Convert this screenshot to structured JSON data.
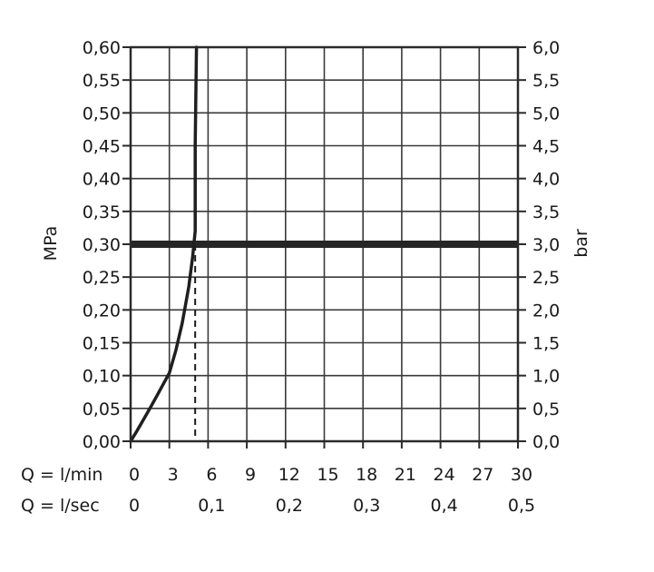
{
  "chart_data": {
    "type": "line",
    "title": "",
    "ylabel_left": "MPa",
    "ylabel_right": "bar",
    "x_primary": {
      "label": "Q = l/min",
      "ticks": [
        "0",
        "3",
        "6",
        "9",
        "12",
        "15",
        "18",
        "21",
        "24",
        "27",
        "30"
      ],
      "range": [
        0,
        30
      ]
    },
    "x_secondary": {
      "label": "Q = l/sec",
      "ticks": [
        "0",
        "0,1",
        "0,2",
        "0,3",
        "0,4",
        "0,5"
      ],
      "tick_values_lmin": [
        0,
        6,
        12,
        18,
        24,
        30
      ]
    },
    "y_left": {
      "ticks": [
        "0,00",
        "0,05",
        "0,10",
        "0,15",
        "0,20",
        "0,25",
        "0,30",
        "0,35",
        "0,40",
        "0,45",
        "0,50",
        "0,55",
        "0,60"
      ],
      "range": [
        0,
        0.6
      ]
    },
    "y_right": {
      "ticks": [
        "0,0",
        "0,5",
        "1,0",
        "1,5",
        "2,0",
        "2,5",
        "3,0",
        "3,5",
        "4,0",
        "4,5",
        "5,0",
        "5,5",
        "6,0"
      ],
      "range": [
        0,
        6
      ]
    },
    "grid": true,
    "series": [
      {
        "x": [
          0,
          0.5,
          1,
          1.5,
          2,
          2.5,
          3,
          3.5,
          4,
          4.5,
          4.8,
          5.0,
          5.0,
          5.1
        ],
        "y": [
          0,
          0.016,
          0.033,
          0.05,
          0.068,
          0.086,
          0.104,
          0.138,
          0.18,
          0.235,
          0.28,
          0.32,
          0.45,
          0.6
        ]
      }
    ],
    "reference_lines": {
      "horizontal_y": 0.3,
      "vertical_dashed_x": 5.0
    }
  }
}
